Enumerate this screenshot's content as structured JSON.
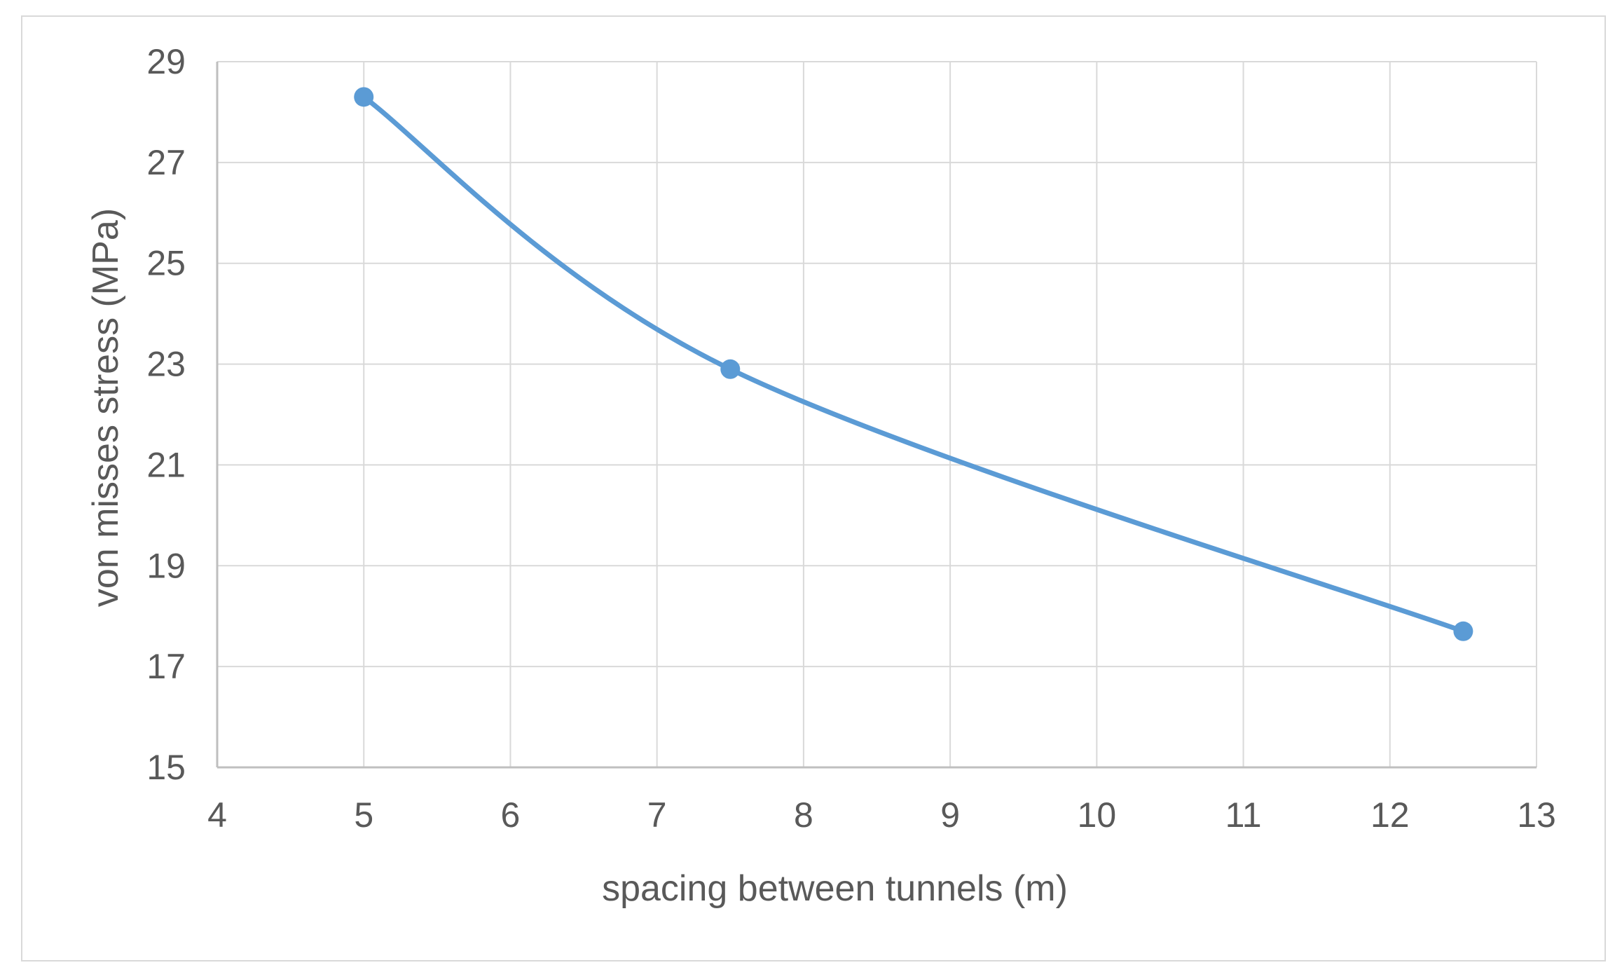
{
  "chart_data": {
    "type": "line",
    "xlabel": "spacing between  tunnels (m)",
    "ylabel": "von misses stress (MPa)",
    "xlim": [
      4,
      13
    ],
    "ylim": [
      15,
      29
    ],
    "xticks": [
      4,
      5,
      6,
      7,
      8,
      9,
      10,
      11,
      12,
      13
    ],
    "yticks": [
      15,
      17,
      19,
      21,
      23,
      25,
      27,
      29
    ],
    "grid": true,
    "smoothed": true,
    "series": [
      {
        "x": [
          5,
          7.5,
          12.5
        ],
        "y": [
          28.3,
          22.9,
          17.7
        ],
        "color": "#5b9bd5"
      }
    ],
    "colors": {
      "grid": "#d9d9d9",
      "axis": "#bfbfbf",
      "text": "#595959"
    }
  }
}
